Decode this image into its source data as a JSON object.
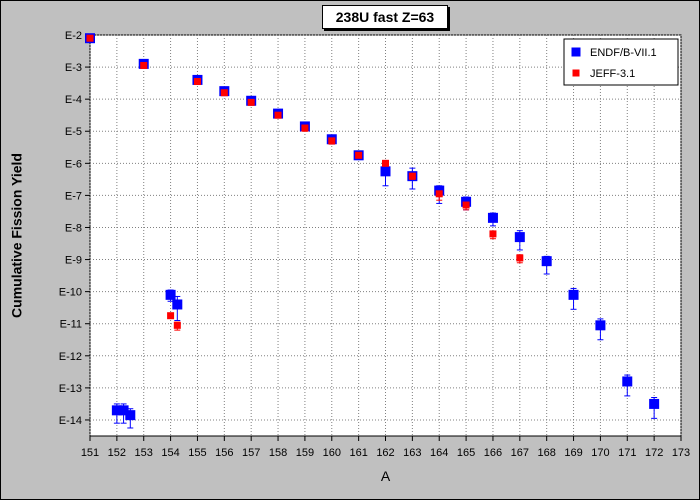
{
  "chart_data": {
    "type": "scatter",
    "title": "238U fast Z=63",
    "xlabel": "A",
    "ylabel": "Cumulative Fission Yield",
    "xlim": [
      151,
      173
    ],
    "x_ticks": [
      151,
      152,
      153,
      154,
      155,
      156,
      157,
      158,
      159,
      160,
      161,
      162,
      163,
      164,
      165,
      166,
      167,
      168,
      169,
      170,
      171,
      172,
      173
    ],
    "y_scale": "log",
    "ylim": [
      -14.5,
      -2
    ],
    "y_ticks": [
      {
        "exp": -2,
        "label": "E-2"
      },
      {
        "exp": -3,
        "label": "E-3"
      },
      {
        "exp": -4,
        "label": "E-4"
      },
      {
        "exp": -5,
        "label": "E-5"
      },
      {
        "exp": -6,
        "label": "E-6"
      },
      {
        "exp": -7,
        "label": "E-7"
      },
      {
        "exp": -8,
        "label": "E-8"
      },
      {
        "exp": -9,
        "label": "E-9"
      },
      {
        "exp": -10,
        "label": "E-10"
      },
      {
        "exp": -11,
        "label": "E-11"
      },
      {
        "exp": -12,
        "label": "E-12"
      },
      {
        "exp": -13,
        "label": "E-13"
      },
      {
        "exp": -14,
        "label": "E-14"
      }
    ],
    "grid": true,
    "legend_position": "top-right",
    "series": [
      {
        "name": "ENDF/B-VII.1",
        "color": "#0000ff",
        "marker": "square-large",
        "points": [
          {
            "x": 151.0,
            "y_exp": -2.1,
            "err_lo": 0,
            "err_hi": 0
          },
          {
            "x": 152.0,
            "y_exp": -13.7,
            "err_lo": 0.4,
            "err_hi": 0.2
          },
          {
            "x": 152.25,
            "y_exp": -13.7,
            "err_lo": 0.4,
            "err_hi": 0.2
          },
          {
            "x": 152.5,
            "y_exp": -13.85,
            "err_lo": 0.4,
            "err_hi": 0.2
          },
          {
            "x": 153.0,
            "y_exp": -2.9,
            "err_lo": 0,
            "err_hi": 0
          },
          {
            "x": 154.0,
            "y_exp": -10.1,
            "err_lo": 0.2,
            "err_hi": 0.15
          },
          {
            "x": 154.25,
            "y_exp": -10.4,
            "err_lo": 0.5,
            "err_hi": 0.25
          },
          {
            "x": 155.0,
            "y_exp": -3.4,
            "err_lo": 0,
            "err_hi": 0
          },
          {
            "x": 156.0,
            "y_exp": -3.75,
            "err_lo": 0,
            "err_hi": 0
          },
          {
            "x": 157.0,
            "y_exp": -4.05,
            "err_lo": 0,
            "err_hi": 0
          },
          {
            "x": 158.0,
            "y_exp": -4.45,
            "err_lo": 0,
            "err_hi": 0
          },
          {
            "x": 159.0,
            "y_exp": -4.85,
            "err_lo": 0,
            "err_hi": 0
          },
          {
            "x": 160.0,
            "y_exp": -5.25,
            "err_lo": 0.15,
            "err_hi": 0
          },
          {
            "x": 161.0,
            "y_exp": -5.75,
            "err_lo": 0,
            "err_hi": 0
          },
          {
            "x": 162.0,
            "y_exp": -6.25,
            "err_lo": 0.45,
            "err_hi": 0.3
          },
          {
            "x": 163.0,
            "y_exp": -6.4,
            "err_lo": 0.4,
            "err_hi": 0.25
          },
          {
            "x": 164.0,
            "y_exp": -6.85,
            "err_lo": 0.4,
            "err_hi": 0.15
          },
          {
            "x": 165.0,
            "y_exp": -7.2,
            "err_lo": 0.25,
            "err_hi": 0.15
          },
          {
            "x": 166.0,
            "y_exp": -7.7,
            "err_lo": 0.25,
            "err_hi": 0.15
          },
          {
            "x": 167.0,
            "y_exp": -8.3,
            "err_lo": 0.4,
            "err_hi": 0.2
          },
          {
            "x": 168.0,
            "y_exp": -9.05,
            "err_lo": 0.4,
            "err_hi": 0.15
          },
          {
            "x": 169.0,
            "y_exp": -10.1,
            "err_lo": 0.45,
            "err_hi": 0.2
          },
          {
            "x": 170.0,
            "y_exp": -11.05,
            "err_lo": 0.45,
            "err_hi": 0.2
          },
          {
            "x": 171.0,
            "y_exp": -12.8,
            "err_lo": 0.45,
            "err_hi": 0.2
          },
          {
            "x": 172.0,
            "y_exp": -13.5,
            "err_lo": 0.45,
            "err_hi": 0.2
          }
        ]
      },
      {
        "name": "JEFF-3.1",
        "color": "#ff0000",
        "marker": "square-small",
        "points": [
          {
            "x": 151.0,
            "y_exp": -2.1,
            "err_lo": 0,
            "err_hi": 0
          },
          {
            "x": 153.0,
            "y_exp": -2.95,
            "err_lo": 0,
            "err_hi": 0
          },
          {
            "x": 154.0,
            "y_exp": -10.75,
            "err_lo": 0,
            "err_hi": 0
          },
          {
            "x": 154.25,
            "y_exp": -11.05,
            "err_lo": 0.15,
            "err_hi": 0.1
          },
          {
            "x": 155.0,
            "y_exp": -3.45,
            "err_lo": 0,
            "err_hi": 0
          },
          {
            "x": 156.0,
            "y_exp": -3.8,
            "err_lo": 0,
            "err_hi": 0
          },
          {
            "x": 157.0,
            "y_exp": -4.1,
            "err_lo": 0,
            "err_hi": 0
          },
          {
            "x": 158.0,
            "y_exp": -4.5,
            "err_lo": 0,
            "err_hi": 0
          },
          {
            "x": 159.0,
            "y_exp": -4.9,
            "err_lo": 0.1,
            "err_hi": 0
          },
          {
            "x": 160.0,
            "y_exp": -5.3,
            "err_lo": 0.1,
            "err_hi": 0
          },
          {
            "x": 161.0,
            "y_exp": -5.75,
            "err_lo": 0,
            "err_hi": 0
          },
          {
            "x": 162.0,
            "y_exp": -6.0,
            "err_lo": 0,
            "err_hi": 0
          },
          {
            "x": 163.0,
            "y_exp": -6.4,
            "err_lo": 0.1,
            "err_hi": 0
          },
          {
            "x": 164.0,
            "y_exp": -6.95,
            "err_lo": 0.2,
            "err_hi": 0
          },
          {
            "x": 165.0,
            "y_exp": -7.3,
            "err_lo": 0.15,
            "err_hi": 0
          },
          {
            "x": 166.0,
            "y_exp": -8.2,
            "err_lo": 0.15,
            "err_hi": 0
          },
          {
            "x": 167.0,
            "y_exp": -8.95,
            "err_lo": 0.15,
            "err_hi": 0.1
          }
        ]
      }
    ]
  }
}
